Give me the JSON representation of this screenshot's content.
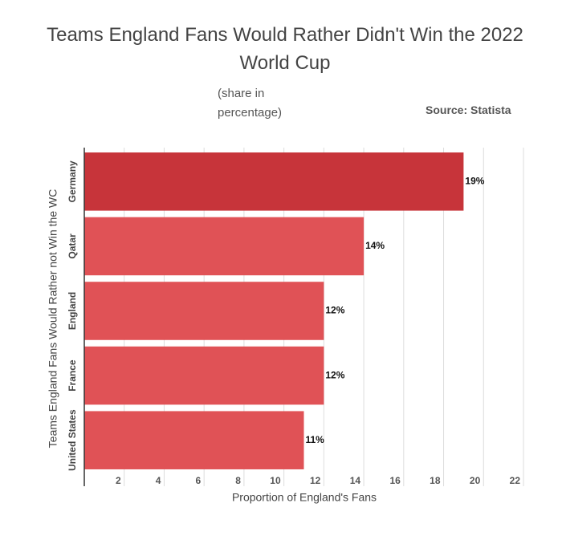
{
  "chart_data": {
    "type": "hbar",
    "title": "Teams England Fans Would Rather Didn't Win the 2022 World Cup",
    "subtitle": "(share in percentage)",
    "source": "Source: Statista",
    "x_label": "Proportion of England's Fans",
    "y_label": "Teams England Fans Would Rather not Win the WC",
    "categories": [
      "Germany",
      "Qatar",
      "England",
      "France",
      "United States"
    ],
    "values": [
      19,
      14,
      12,
      12,
      11
    ],
    "value_labels": [
      "19%",
      "14%",
      "12%",
      "12%",
      "11%"
    ],
    "colors": [
      "#c7343a",
      "#e05256",
      "#e05256",
      "#e05256",
      "#e05256"
    ],
    "xlim": [
      0,
      22
    ],
    "xticks": [
      2,
      4,
      6,
      8,
      10,
      12,
      14,
      16,
      18,
      20,
      22
    ],
    "grid": true
  }
}
